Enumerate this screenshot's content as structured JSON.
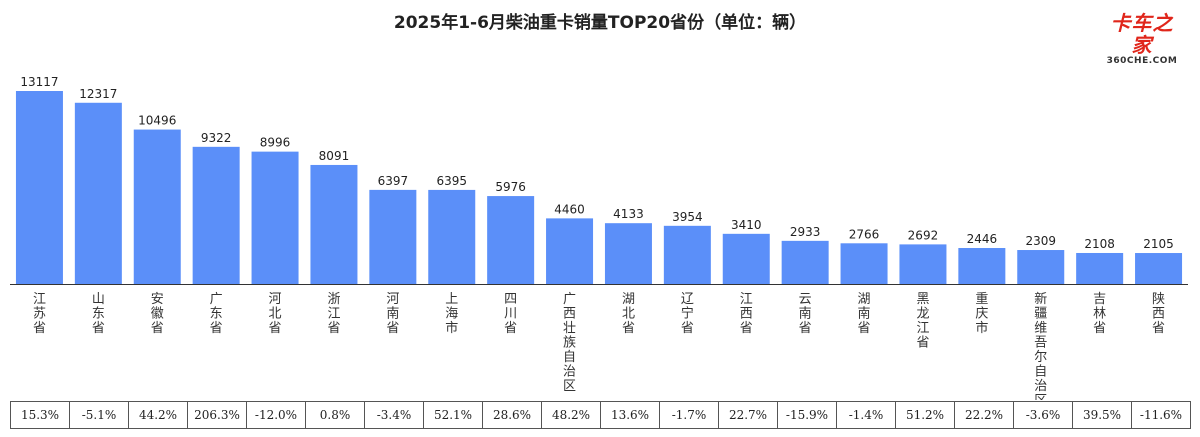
{
  "title": "2025年1-6月柴油重卡销量TOP20省份（单位：辆）",
  "logo": {
    "main": "卡车之家",
    "sub": "360CHE.COM"
  },
  "colors": {
    "bar": "#5b8ff9",
    "axis": "#333333"
  },
  "chart_data": {
    "type": "bar",
    "categories": [
      "江苏省",
      "山东省",
      "安徽省",
      "广东省",
      "河北省",
      "浙江省",
      "河南省",
      "上海市",
      "四川省",
      "广西壮族自治区",
      "湖北省",
      "辽宁省",
      "江西省",
      "云南省",
      "湖南省",
      "黑龙江省",
      "重庆市",
      "新疆维吾尔自治区",
      "吉林省",
      "陕西省"
    ],
    "values": [
      13117,
      12317,
      10496,
      9322,
      8996,
      8091,
      6397,
      6395,
      5976,
      4460,
      4133,
      3954,
      3410,
      2933,
      2766,
      2692,
      2446,
      2309,
      2108,
      2105
    ],
    "ylim": [
      0,
      13117
    ],
    "grid": false,
    "legend": "none",
    "growth_row": [
      "15.3%",
      "-5.1%",
      "44.2%",
      "206.3%",
      "-12.0%",
      "0.8%",
      "-3.4%",
      "52.1%",
      "28.6%",
      "48.2%",
      "13.6%",
      "-1.7%",
      "22.7%",
      "-15.9%",
      "-1.4%",
      "51.2%",
      "22.2%",
      "-3.6%",
      "39.5%",
      "-11.6%"
    ]
  }
}
